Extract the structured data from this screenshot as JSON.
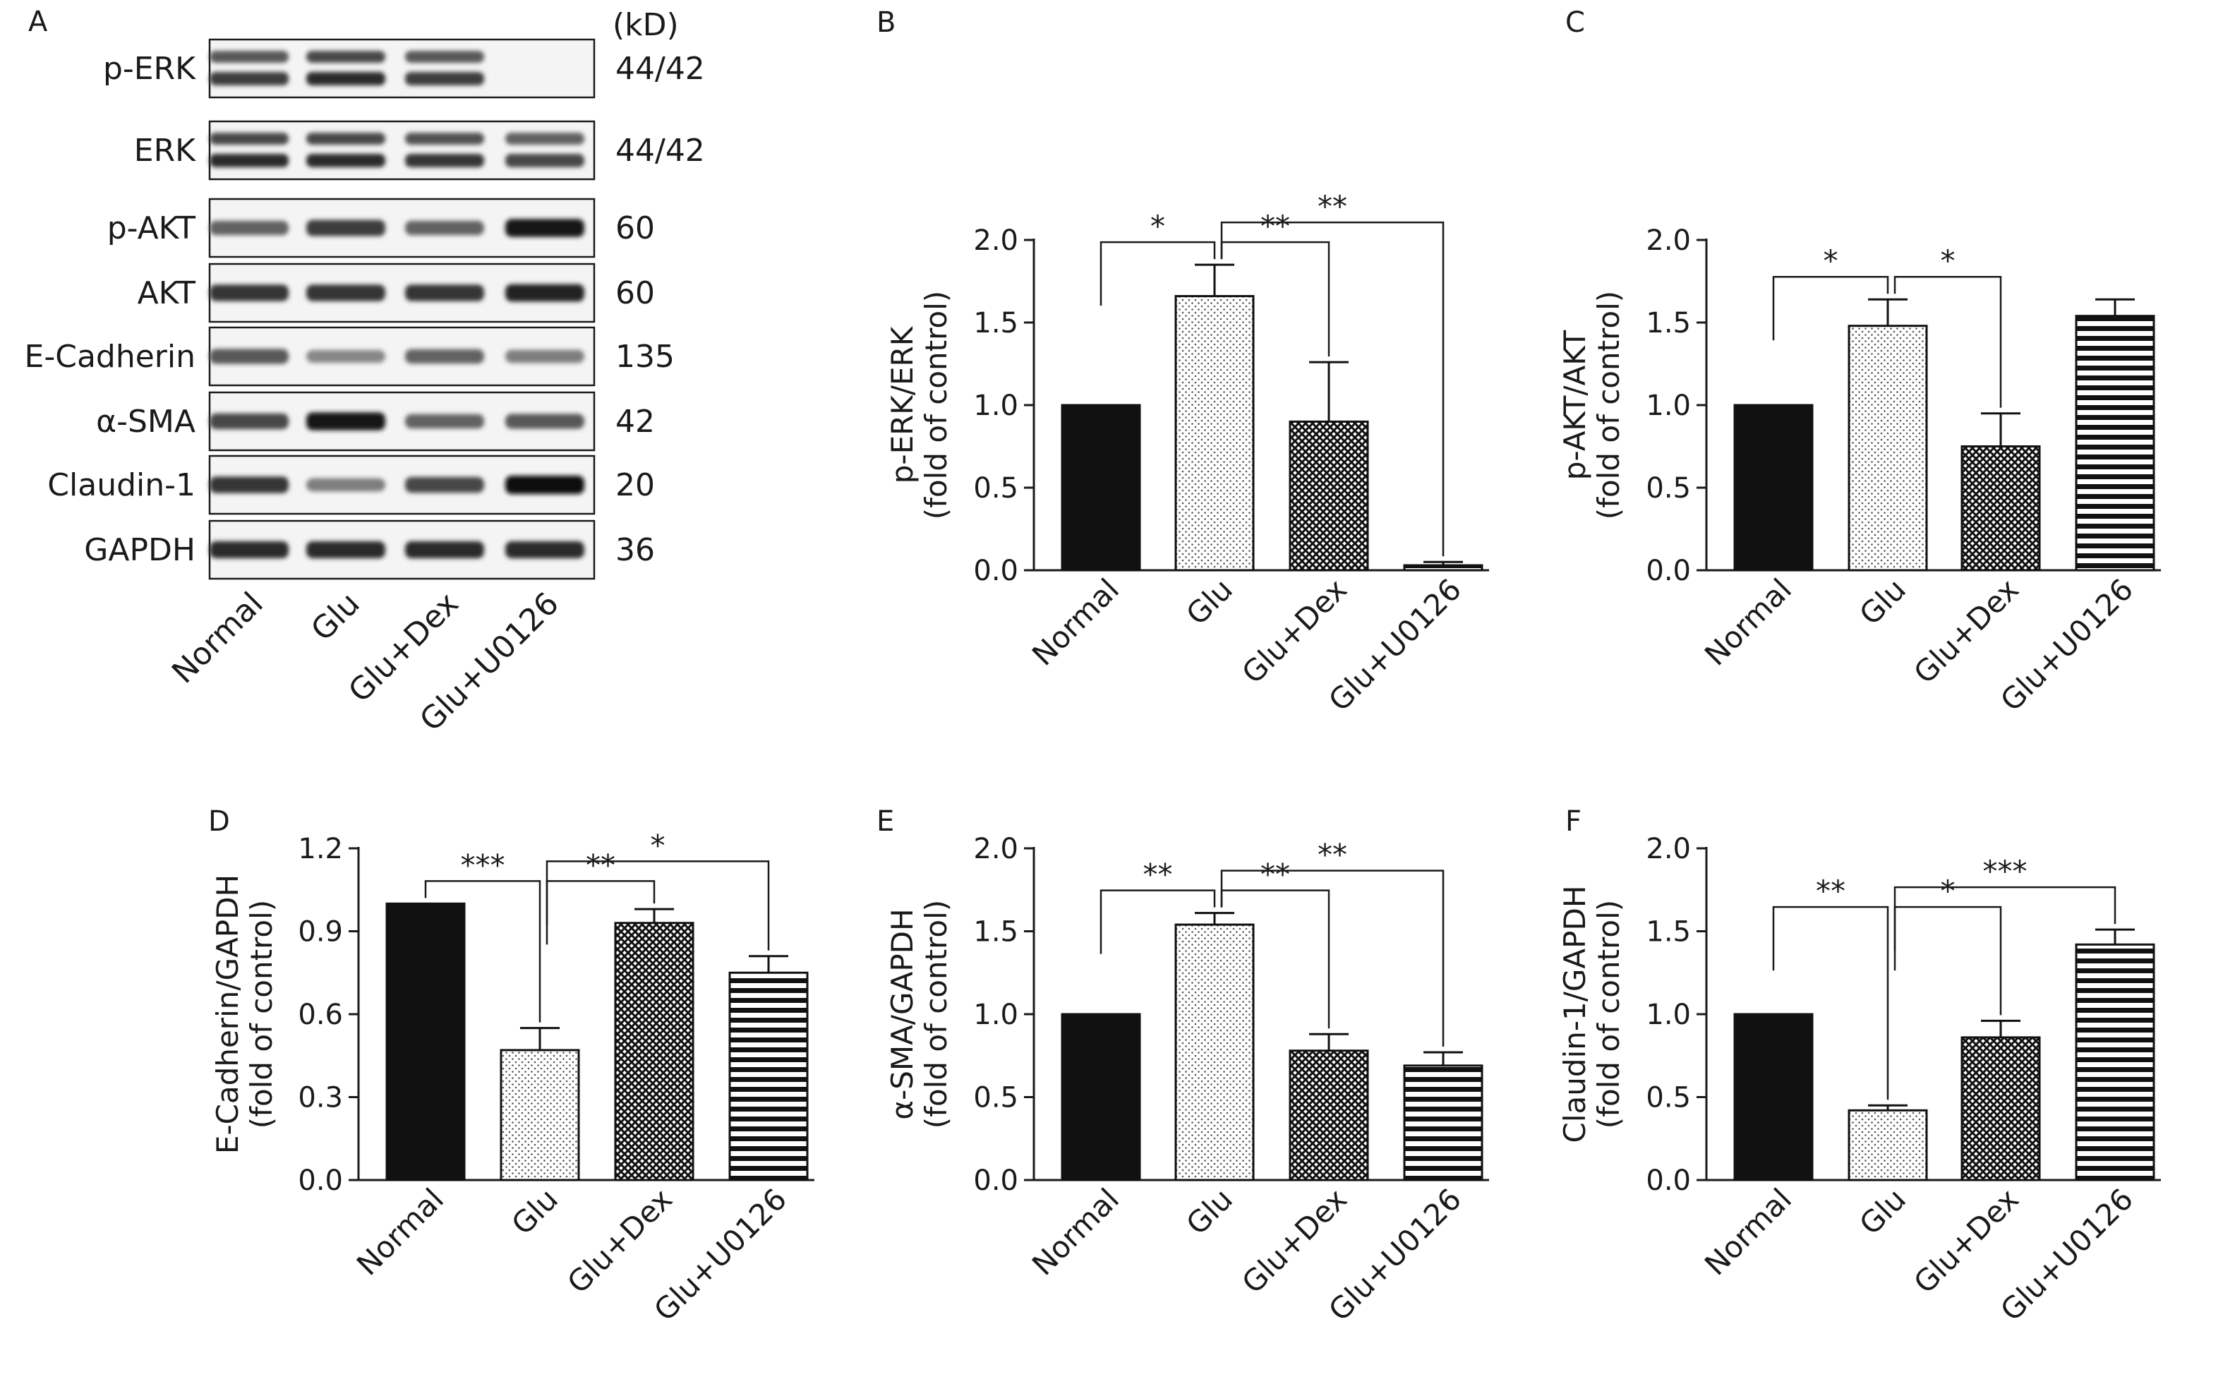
{
  "panel_a": {
    "letter": "A",
    "kd_header": "(kD)",
    "lanes": [
      "Normal",
      "Glu",
      "Glu+Dex",
      "Glu+U0126"
    ],
    "blots": [
      {
        "name": "p-ERK",
        "kd": "44/42",
        "intensity": [
          0.75,
          0.85,
          0.75,
          0.0
        ],
        "double": true
      },
      {
        "name": "ERK",
        "kd": "44/42",
        "intensity": [
          0.85,
          0.85,
          0.8,
          0.7
        ],
        "double": true
      },
      {
        "name": "p-AKT",
        "kd": "60",
        "intensity": [
          0.55,
          0.75,
          0.55,
          0.95
        ],
        "double": false
      },
      {
        "name": "AKT",
        "kd": "60",
        "intensity": [
          0.8,
          0.8,
          0.8,
          0.9
        ],
        "double": false
      },
      {
        "name": "E-Cadherin",
        "kd": "135",
        "intensity": [
          0.6,
          0.35,
          0.55,
          0.4
        ],
        "double": false
      },
      {
        "name": "α-SMA",
        "kd": "42",
        "intensity": [
          0.7,
          0.95,
          0.55,
          0.6
        ],
        "double": false
      },
      {
        "name": "Claudin-1",
        "kd": "20",
        "intensity": [
          0.8,
          0.4,
          0.7,
          1.0
        ],
        "double": false
      },
      {
        "name": "GAPDH",
        "kd": "36",
        "intensity": [
          0.85,
          0.85,
          0.85,
          0.85
        ],
        "double": false
      }
    ]
  },
  "chart_data": [
    {
      "letter": "B",
      "type": "bar",
      "categories": [
        "Normal",
        "Glu",
        "Glu+Dex",
        "Glu+U0126"
      ],
      "values": [
        1.0,
        1.66,
        0.9,
        0.03
      ],
      "errors": [
        0,
        0.19,
        0.36,
        0.02
      ],
      "ylabel": [
        "p-ERK/ERK",
        "(fold of control)"
      ],
      "ylim": [
        0,
        2.0
      ],
      "yticks": [
        "0.0",
        "0.5",
        "1.0",
        "1.5",
        "2.0"
      ],
      "significance": [
        {
          "from": 0,
          "to": 1,
          "label": "*"
        },
        {
          "from": 1,
          "to": 2,
          "label": "**"
        },
        {
          "from": 1,
          "to": 3,
          "label": "**"
        }
      ]
    },
    {
      "letter": "C",
      "type": "bar",
      "categories": [
        "Normal",
        "Glu",
        "Glu+Dex",
        "Glu+U0126"
      ],
      "values": [
        1.0,
        1.48,
        0.75,
        1.54
      ],
      "errors": [
        0,
        0.16,
        0.2,
        0.1
      ],
      "ylabel": [
        "p-AKT/AKT",
        "(fold of control)"
      ],
      "ylim": [
        0,
        2.0
      ],
      "yticks": [
        "0.0",
        "0.5",
        "1.0",
        "1.5",
        "2.0"
      ],
      "significance": [
        {
          "from": 0,
          "to": 1,
          "label": "*"
        },
        {
          "from": 1,
          "to": 2,
          "label": "*"
        }
      ]
    },
    {
      "letter": "D",
      "type": "bar",
      "categories": [
        "Normal",
        "Glu",
        "Glu+Dex",
        "Glu+U0126"
      ],
      "values": [
        1.0,
        0.47,
        0.93,
        0.75
      ],
      "errors": [
        0,
        0.08,
        0.05,
        0.06
      ],
      "ylabel": [
        "E-Cadherin/GAPDH",
        "(fold of control)"
      ],
      "ylim": [
        0,
        1.2
      ],
      "yticks": [
        "0.0",
        "0.3",
        "0.6",
        "0.9",
        "1.2"
      ],
      "significance": [
        {
          "from": 0,
          "to": 1,
          "label": "***"
        },
        {
          "from": 1,
          "to": 2,
          "label": "**"
        },
        {
          "from": 1,
          "to": 3,
          "label": "*"
        }
      ]
    },
    {
      "letter": "E",
      "type": "bar",
      "categories": [
        "Normal",
        "Glu",
        "Glu+Dex",
        "Glu+U0126"
      ],
      "values": [
        1.0,
        1.54,
        0.78,
        0.69
      ],
      "errors": [
        0,
        0.07,
        0.1,
        0.08
      ],
      "ylabel": [
        "α-SMA/GAPDH",
        "(fold of control)"
      ],
      "ylim": [
        0,
        2.0
      ],
      "yticks": [
        "0.0",
        "0.5",
        "1.0",
        "1.5",
        "2.0"
      ],
      "significance": [
        {
          "from": 0,
          "to": 1,
          "label": "**"
        },
        {
          "from": 1,
          "to": 2,
          "label": "**"
        },
        {
          "from": 1,
          "to": 3,
          "label": "**"
        }
      ]
    },
    {
      "letter": "F",
      "type": "bar",
      "categories": [
        "Normal",
        "Glu",
        "Glu+Dex",
        "Glu+U0126"
      ],
      "values": [
        1.0,
        0.42,
        0.86,
        1.42
      ],
      "errors": [
        0,
        0.03,
        0.1,
        0.09
      ],
      "ylabel": [
        "Claudin-1/GAPDH",
        "(fold of control)"
      ],
      "ylim": [
        0,
        2.0
      ],
      "yticks": [
        "0.0",
        "0.5",
        "1.0",
        "1.5",
        "2.0"
      ],
      "significance": [
        {
          "from": 0,
          "to": 1,
          "label": "**"
        },
        {
          "from": 1,
          "to": 2,
          "label": "*"
        },
        {
          "from": 1,
          "to": 3,
          "label": "***"
        }
      ]
    }
  ],
  "colors": {
    "ink": "#1a1a1a",
    "bar_solid": "#111111",
    "background": "#ffffff"
  }
}
